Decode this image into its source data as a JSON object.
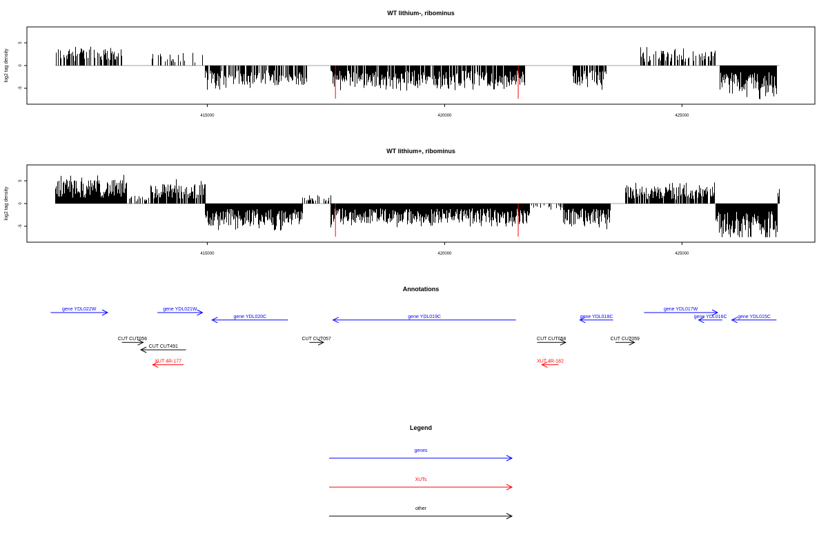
{
  "colors": {
    "bars": "#000000",
    "marker": "#ff0000",
    "baseline": "#a0a0a0",
    "genes": "#0000ff",
    "xuts": "#ff0000",
    "other": "#000000"
  },
  "chart_data": [
    {
      "type": "bar",
      "title": "WT lithium-, ribominus",
      "ylabel": "log2 tag density",
      "xlim": [
        411200,
        427800
      ],
      "ylim": [
        -8.5,
        8.5
      ],
      "xticks": [
        415000,
        420000,
        425000
      ],
      "xtick_labels": [
        "415000",
        "420000",
        "425000"
      ],
      "yticks": [
        -5,
        0,
        5
      ],
      "ytick_labels": [
        "-5",
        "0",
        "5"
      ],
      "markers": [
        417700,
        421550
      ],
      "segments": [
        {
          "start": 411800,
          "end": 413200,
          "sign": 1,
          "mean": 2.7,
          "dens": 0.6
        },
        {
          "start": 413800,
          "end": 414900,
          "sign": 1,
          "mean": 1.9,
          "dens": 0.4
        },
        {
          "start": 414950,
          "end": 417100,
          "sign": -1,
          "mean": 3.0,
          "dens": 0.75
        },
        {
          "start": 417600,
          "end": 421700,
          "sign": -1,
          "mean": 3.1,
          "dens": 0.85
        },
        {
          "start": 422700,
          "end": 423400,
          "sign": -1,
          "mean": 3.0,
          "dens": 0.8
        },
        {
          "start": 424100,
          "end": 425700,
          "sign": 1,
          "mean": 2.3,
          "dens": 0.55
        },
        {
          "start": 425800,
          "end": 427000,
          "sign": -1,
          "mean": 4.2,
          "dens": 1.0
        }
      ]
    },
    {
      "type": "bar",
      "title": "WT lithium+, ribominus",
      "ylabel": "log2 tag density",
      "xlim": [
        411200,
        427800
      ],
      "ylim": [
        -8.5,
        8.5
      ],
      "xticks": [
        415000,
        420000,
        425000
      ],
      "xtick_labels": [
        "415000",
        "420000",
        "425000"
      ],
      "yticks": [
        -5,
        0,
        5
      ],
      "ytick_labels": [
        "-5",
        "0",
        "5"
      ],
      "markers": [
        417700,
        421550
      ],
      "segments": [
        {
          "start": 411800,
          "end": 413300,
          "sign": 1,
          "mean": 3.6,
          "dens": 1.0
        },
        {
          "start": 413300,
          "end": 413800,
          "sign": 1,
          "mean": 1.2,
          "dens": 0.4
        },
        {
          "start": 413800,
          "end": 414950,
          "sign": 1,
          "mean": 3.0,
          "dens": 0.9
        },
        {
          "start": 414950,
          "end": 417000,
          "sign": -1,
          "mean": 3.4,
          "dens": 1.0
        },
        {
          "start": 417000,
          "end": 417600,
          "sign": 1,
          "mean": 1.3,
          "dens": 0.4
        },
        {
          "start": 417600,
          "end": 421800,
          "sign": -1,
          "mean": 3.0,
          "dens": 1.0
        },
        {
          "start": 421800,
          "end": 422500,
          "sign": -1,
          "mean": 0.8,
          "dens": 0.25
        },
        {
          "start": 422500,
          "end": 423500,
          "sign": -1,
          "mean": 3.2,
          "dens": 1.0
        },
        {
          "start": 423800,
          "end": 425700,
          "sign": 1,
          "mean": 2.6,
          "dens": 0.85
        },
        {
          "start": 425700,
          "end": 427000,
          "sign": -1,
          "mean": 4.8,
          "dens": 1.0
        },
        {
          "start": 427000,
          "end": 427050,
          "sign": 1,
          "mean": 2.0,
          "dens": 0.6
        }
      ]
    }
  ],
  "annotations": {
    "title": "Annotations",
    "xlim": [
      411200,
      427800
    ],
    "items": [
      {
        "label": "gene YDL022W",
        "start": 411700,
        "end": 412900,
        "strand": "+",
        "kind": "genes",
        "row": 0
      },
      {
        "label": "gene YDL021W",
        "start": 413950,
        "end": 414900,
        "strand": "+",
        "kind": "genes",
        "row": 0
      },
      {
        "label": "gene YDL020C",
        "start": 415100,
        "end": 416700,
        "strand": "-",
        "kind": "genes",
        "row": 1
      },
      {
        "label": "gene YDL019C",
        "start": 417650,
        "end": 421500,
        "strand": "-",
        "kind": "genes",
        "row": 1
      },
      {
        "label": "gene YDL018C",
        "start": 422850,
        "end": 423550,
        "strand": "-",
        "kind": "genes",
        "row": 1
      },
      {
        "label": "gene YDL017W",
        "start": 424200,
        "end": 425750,
        "strand": "+",
        "kind": "genes",
        "row": 0
      },
      {
        "label": "gene YDL016C",
        "start": 425350,
        "end": 425850,
        "strand": "-",
        "kind": "genes",
        "row": 1
      },
      {
        "label": "gene YDL015C",
        "start": 426050,
        "end": 426990,
        "strand": "-",
        "kind": "genes",
        "row": 1
      },
      {
        "label": "CUT CUT056",
        "start": 413200,
        "end": 413650,
        "strand": "+",
        "kind": "other",
        "row": 4
      },
      {
        "label": "CUT CUT491",
        "start": 413600,
        "end": 414550,
        "strand": "-",
        "kind": "other",
        "row": 5
      },
      {
        "label": "CUT CUT057",
        "start": 417150,
        "end": 417450,
        "strand": "+",
        "kind": "other",
        "row": 4
      },
      {
        "label": "CUT CUT058",
        "start": 421950,
        "end": 422550,
        "strand": "+",
        "kind": "other",
        "row": 4
      },
      {
        "label": "CUT CUT059",
        "start": 423600,
        "end": 424000,
        "strand": "+",
        "kind": "other",
        "row": 4
      },
      {
        "label": "XUT 4R-177",
        "start": 413850,
        "end": 414500,
        "strand": "-",
        "kind": "xuts",
        "row": 7
      },
      {
        "label": "XUT 4R-182",
        "start": 422050,
        "end": 422400,
        "strand": "-",
        "kind": "xuts",
        "row": 7
      }
    ]
  },
  "legend": {
    "title": "Legend",
    "items": [
      {
        "label": "genes",
        "kind": "genes"
      },
      {
        "label": "XUTs",
        "kind": "xuts"
      },
      {
        "label": "other",
        "kind": "other"
      }
    ]
  }
}
